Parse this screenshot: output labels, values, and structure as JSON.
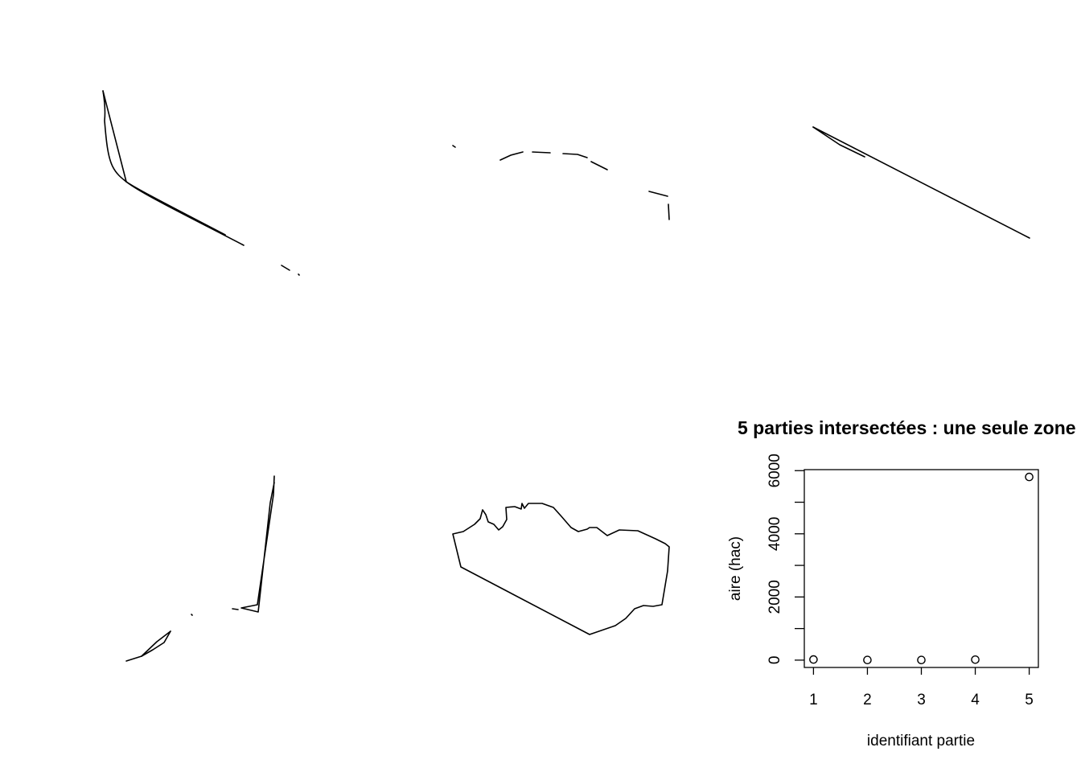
{
  "maps": [
    {
      "name": "map-panel-1"
    },
    {
      "name": "map-panel-2"
    },
    {
      "name": "map-panel-3"
    },
    {
      "name": "map-panel-4"
    },
    {
      "name": "map-panel-5"
    }
  ],
  "chart_data": {
    "type": "scatter",
    "title": "5 parties intersectées : une seule zone",
    "xlabel": "identifiant partie",
    "ylabel": "aire (hac)",
    "x": [
      1,
      2,
      3,
      4,
      5
    ],
    "values": [
      20,
      5,
      5,
      15,
      5800
    ],
    "xlim": [
      0.83,
      5.17
    ],
    "ylim": [
      -232,
      6032
    ],
    "x_ticks": [
      "1",
      "2",
      "3",
      "4",
      "5"
    ],
    "y_ticks": [
      "0",
      "2000",
      "4000",
      "6000"
    ],
    "y_minor_ticks": [
      1000,
      3000,
      5000
    ],
    "grid": false,
    "marker": "open-circle"
  }
}
